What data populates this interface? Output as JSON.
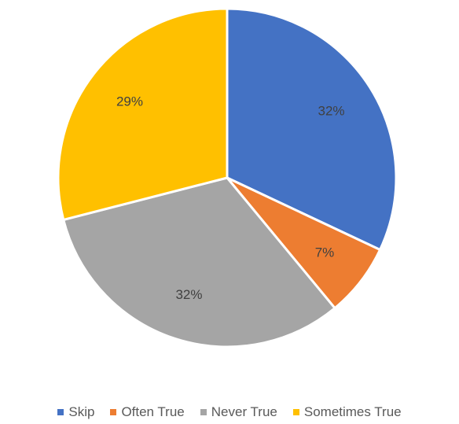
{
  "chart_data": {
    "type": "pie",
    "title": "",
    "slices": [
      {
        "label": "Skip",
        "value": 32,
        "display": "32%",
        "color": "#4472C4"
      },
      {
        "label": "Often True",
        "value": 7,
        "display": "7%",
        "color": "#ED7D31"
      },
      {
        "label": "Never True",
        "value": 32,
        "display": "32%",
        "color": "#A5A5A5"
      },
      {
        "label": "Sometimes True",
        "value": 29,
        "display": "29%",
        "color": "#FFC000"
      }
    ],
    "start_angle_deg": 0,
    "direction": "clockwise",
    "legend_position": "bottom"
  }
}
